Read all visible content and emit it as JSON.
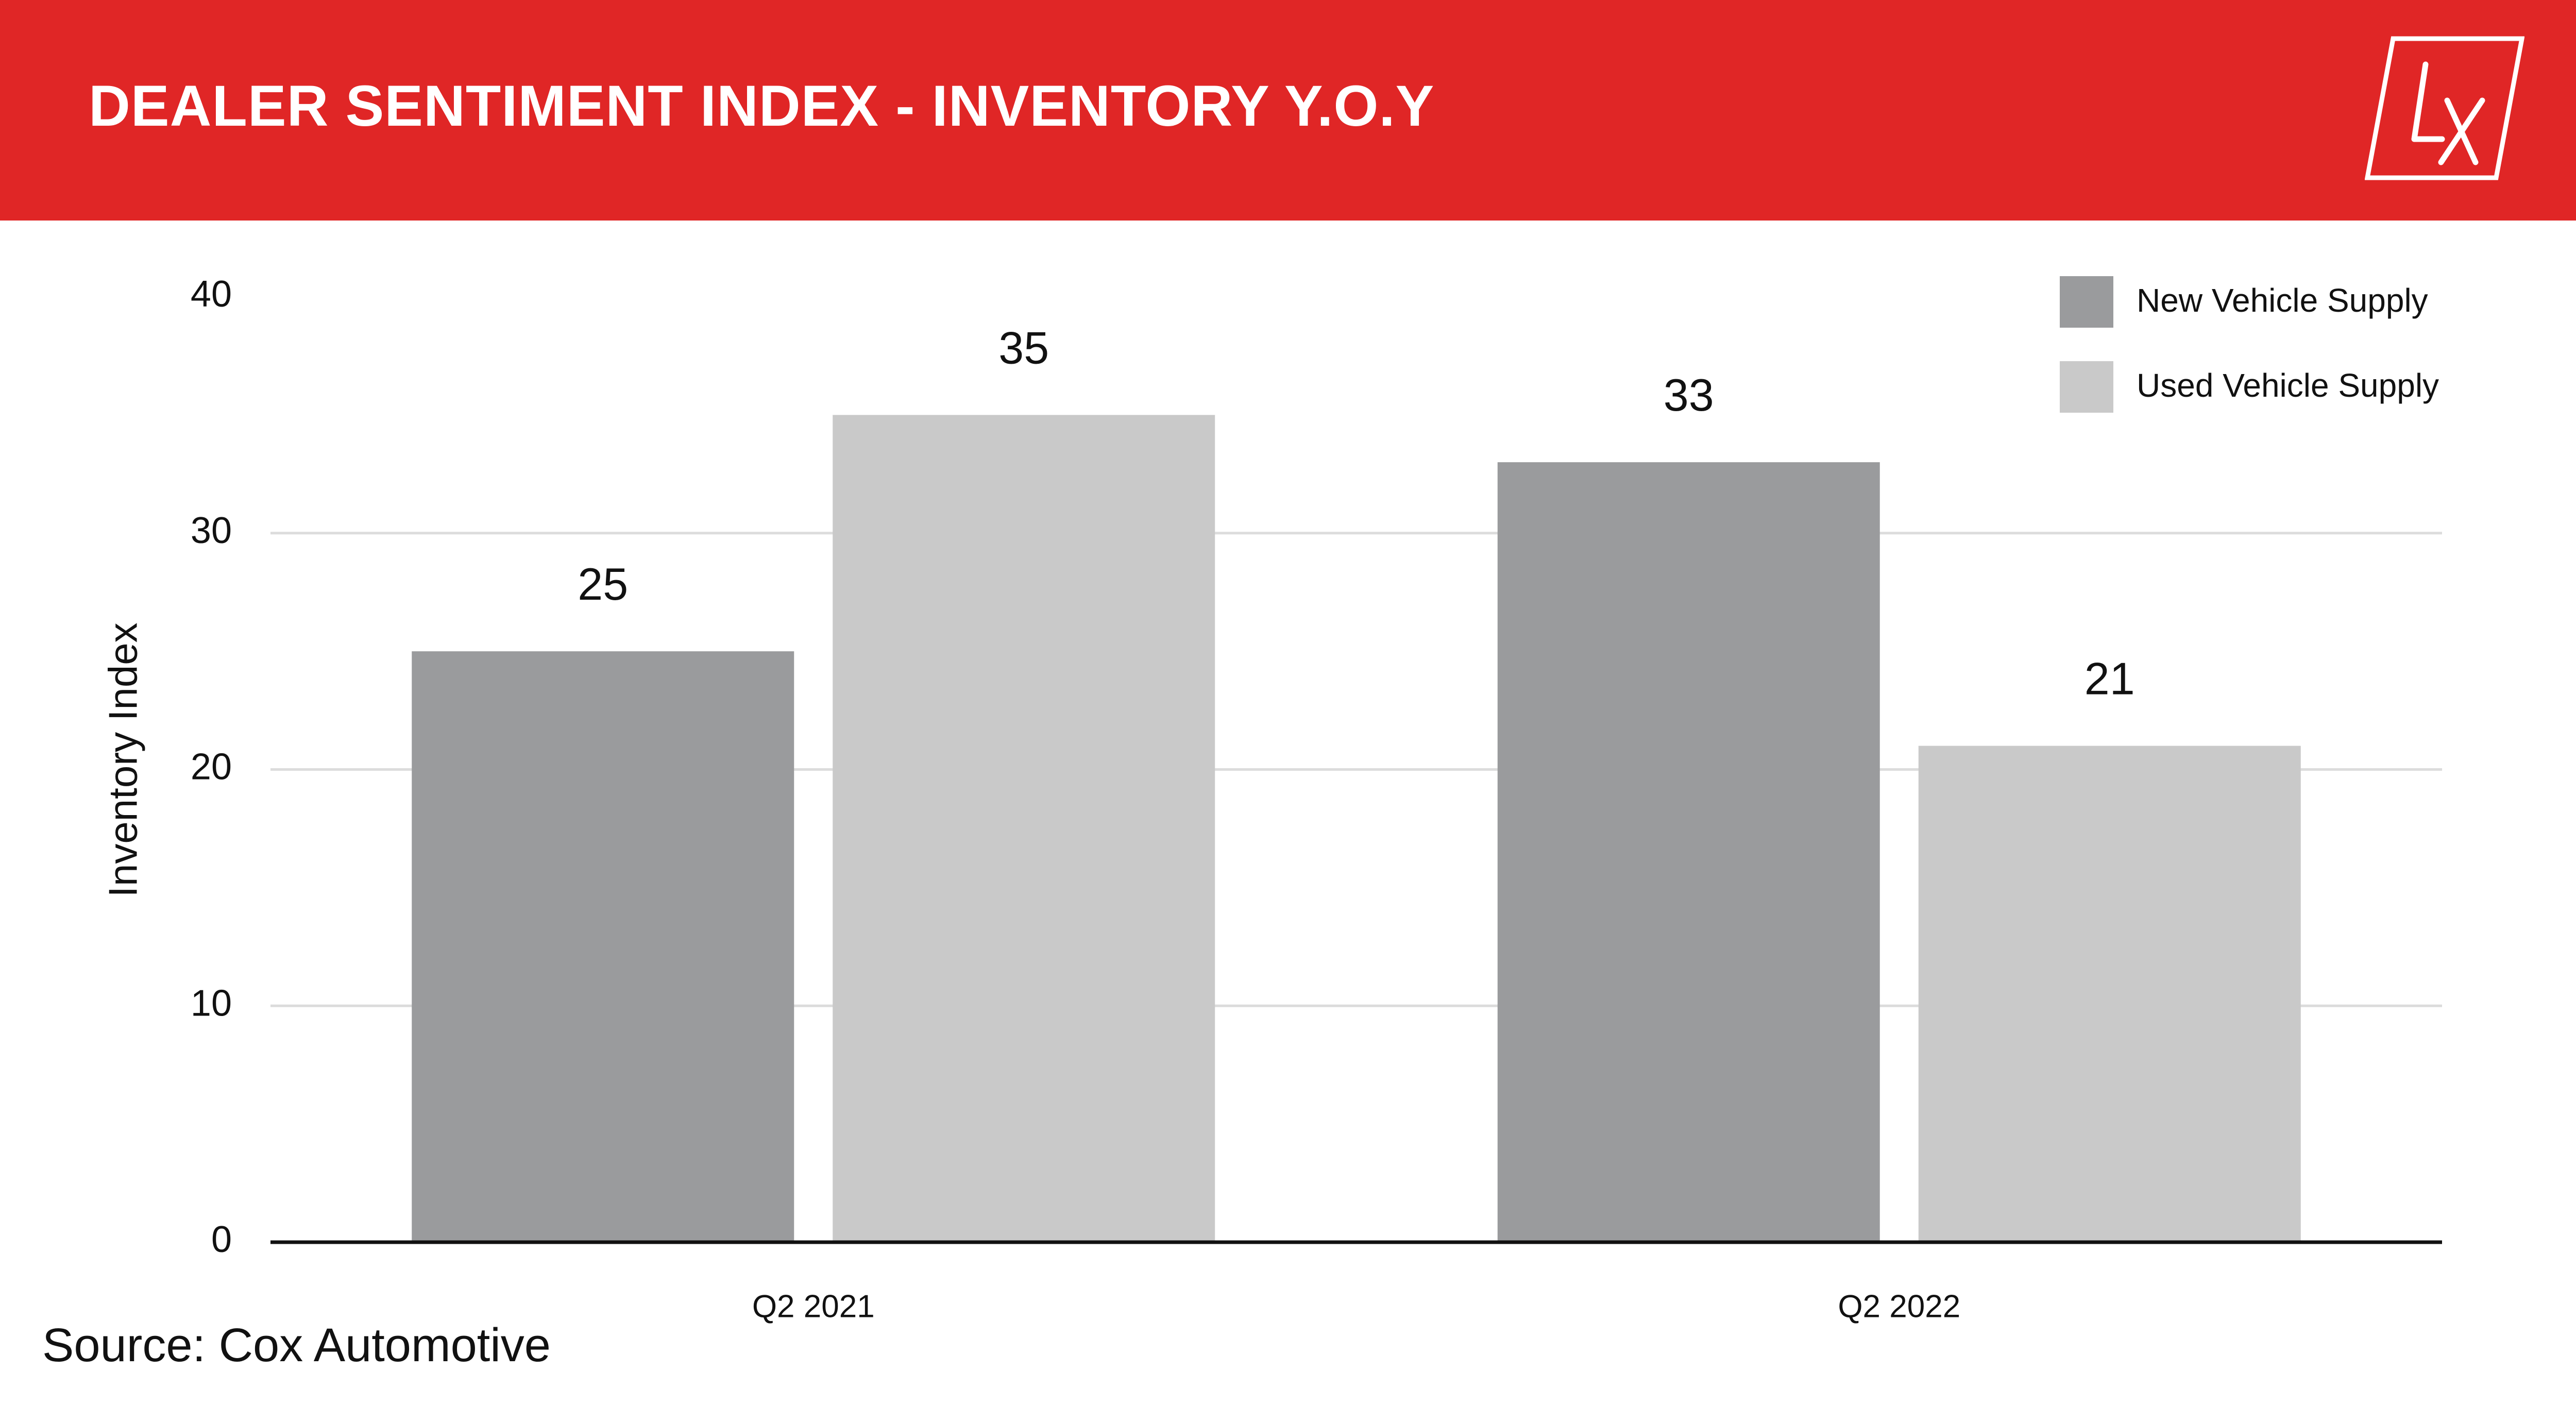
{
  "header": {
    "title": "DEALER SENTIMENT INDEX - INVENTORY Y.O.Y",
    "logo_text": "LX"
  },
  "colors": {
    "header_bg": "#e02626",
    "new_vehicle": "#9a9b9d",
    "used_vehicle": "#c9c9c9"
  },
  "source": "Source: Cox Automotive",
  "chart_data": {
    "type": "bar",
    "title": "DEALER SENTIMENT INDEX - INVENTORY Y.O.Y",
    "xlabel": "",
    "ylabel": "Inventory Index",
    "ylim": [
      0,
      40
    ],
    "yticks": [
      0,
      10,
      20,
      30,
      40
    ],
    "grid": true,
    "legend_position": "top-right",
    "categories": [
      "Q2 2021",
      "Q2 2022"
    ],
    "series": [
      {
        "name": "New Vehicle Supply",
        "values": [
          25,
          33
        ],
        "labels": [
          "25",
          "33"
        ],
        "color": "#9a9b9d"
      },
      {
        "name": "Used Vehicle Supply",
        "values": [
          35,
          21
        ],
        "labels": [
          "35",
          "21"
        ],
        "color": "#c9c9c9"
      }
    ]
  }
}
